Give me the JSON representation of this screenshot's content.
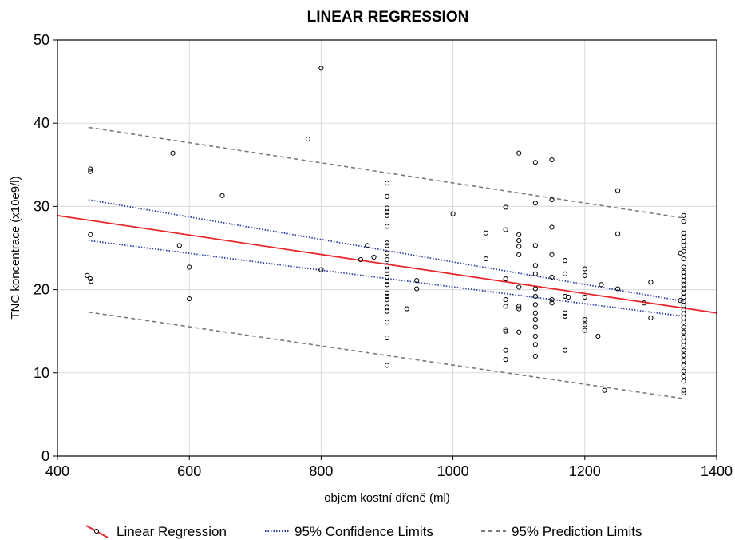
{
  "chart_data": {
    "type": "scatter",
    "title": "LINEAR REGRESSION",
    "xlabel": "objem kostní dřeně (ml)",
    "ylabel": "TNC koncentrace (x10e9/l)",
    "xlim": [
      400,
      1400
    ],
    "ylim": [
      0,
      50
    ],
    "xticks": [
      "400",
      "600",
      "800",
      "1000",
      "1200",
      "1400"
    ],
    "yticks": [
      "0",
      "10",
      "20",
      "30",
      "40",
      "50"
    ],
    "grid": true,
    "legend_position": "bottom",
    "legend": [
      "Linear Regression",
      "95% Confidence Limits",
      "95% Prediction Limits"
    ],
    "colors": {
      "regression": "#e8262b",
      "confidence": "#2a3fa0",
      "prediction": "#7a7a7a",
      "points": "#000000",
      "grid": "#d9d9d9"
    },
    "regression_line": {
      "x": [
        400,
        1400
      ],
      "y": [
        28.9,
        17.2
      ]
    },
    "confidence_upper": {
      "x": [
        447,
        1350
      ],
      "y": [
        30.8,
        18.6
      ]
    },
    "confidence_lower": {
      "x": [
        447,
        1350
      ],
      "y": [
        25.9,
        16.8
      ]
    },
    "prediction_upper": {
      "x": [
        447,
        1350
      ],
      "y": [
        39.5,
        28.6
      ]
    },
    "prediction_lower": {
      "x": [
        447,
        1350
      ],
      "y": [
        17.3,
        6.9
      ]
    },
    "points": [
      [
        445,
        21.7
      ],
      [
        450,
        21.3
      ],
      [
        451,
        21.0
      ],
      [
        450,
        26.6
      ],
      [
        450,
        34.5
      ],
      [
        450,
        34.2
      ],
      [
        575,
        36.4
      ],
      [
        585,
        25.3
      ],
      [
        600,
        22.7
      ],
      [
        600,
        18.9
      ],
      [
        650,
        31.3
      ],
      [
        780,
        38.1
      ],
      [
        800,
        46.6
      ],
      [
        800,
        22.4
      ],
      [
        860,
        23.6
      ],
      [
        870,
        25.3
      ],
      [
        880,
        23.9
      ],
      [
        900,
        32.8
      ],
      [
        900,
        31.2
      ],
      [
        900,
        29.8
      ],
      [
        900,
        29.3
      ],
      [
        900,
        28.9
      ],
      [
        900,
        27.6
      ],
      [
        900,
        25.6
      ],
      [
        900,
        25.3
      ],
      [
        900,
        24.4
      ],
      [
        900,
        23.6
      ],
      [
        900,
        22.9
      ],
      [
        900,
        22.3
      ],
      [
        900,
        21.9
      ],
      [
        900,
        21.5
      ],
      [
        900,
        21.0
      ],
      [
        900,
        20.6
      ],
      [
        900,
        19.6
      ],
      [
        900,
        19.2
      ],
      [
        900,
        18.8
      ],
      [
        900,
        17.9
      ],
      [
        900,
        17.4
      ],
      [
        900,
        16.1
      ],
      [
        900,
        14.2
      ],
      [
        900,
        10.9
      ],
      [
        930,
        17.7
      ],
      [
        945,
        21.1
      ],
      [
        945,
        20.1
      ],
      [
        1000,
        29.1
      ],
      [
        1050,
        26.8
      ],
      [
        1050,
        23.7
      ],
      [
        1080,
        29.9
      ],
      [
        1080,
        27.2
      ],
      [
        1080,
        21.3
      ],
      [
        1080,
        18.8
      ],
      [
        1080,
        18.0
      ],
      [
        1080,
        15.2
      ],
      [
        1080,
        15.0
      ],
      [
        1080,
        12.7
      ],
      [
        1080,
        11.6
      ],
      [
        1100,
        36.4
      ],
      [
        1100,
        26.6
      ],
      [
        1100,
        25.9
      ],
      [
        1100,
        25.2
      ],
      [
        1100,
        24.2
      ],
      [
        1100,
        20.3
      ],
      [
        1100,
        18.0
      ],
      [
        1100,
        17.7
      ],
      [
        1100,
        14.9
      ],
      [
        1125,
        35.3
      ],
      [
        1125,
        30.4
      ],
      [
        1125,
        25.3
      ],
      [
        1125,
        22.9
      ],
      [
        1125,
        21.9
      ],
      [
        1125,
        20.1
      ],
      [
        1125,
        19.2
      ],
      [
        1125,
        18.2
      ],
      [
        1125,
        17.2
      ],
      [
        1125,
        16.4
      ],
      [
        1125,
        15.5
      ],
      [
        1125,
        14.4
      ],
      [
        1125,
        13.4
      ],
      [
        1125,
        12.0
      ],
      [
        1150,
        35.6
      ],
      [
        1150,
        30.8
      ],
      [
        1150,
        27.5
      ],
      [
        1150,
        24.2
      ],
      [
        1150,
        21.5
      ],
      [
        1150,
        18.8
      ],
      [
        1150,
        18.4
      ],
      [
        1170,
        23.5
      ],
      [
        1170,
        21.9
      ],
      [
        1170,
        19.2
      ],
      [
        1170,
        17.2
      ],
      [
        1170,
        16.8
      ],
      [
        1170,
        12.7
      ],
      [
        1175,
        19.1
      ],
      [
        1200,
        22.5
      ],
      [
        1200,
        21.7
      ],
      [
        1200,
        19.1
      ],
      [
        1200,
        16.4
      ],
      [
        1200,
        15.8
      ],
      [
        1200,
        15.1
      ],
      [
        1220,
        14.4
      ],
      [
        1225,
        20.6
      ],
      [
        1230,
        7.9
      ],
      [
        1250,
        31.9
      ],
      [
        1250,
        26.7
      ],
      [
        1250,
        20.1
      ],
      [
        1290,
        18.4
      ],
      [
        1300,
        20.9
      ],
      [
        1300,
        16.6
      ],
      [
        1345,
        24.4
      ],
      [
        1345,
        18.7
      ],
      [
        1350,
        28.9
      ],
      [
        1350,
        28.2
      ],
      [
        1350,
        26.8
      ],
      [
        1350,
        26.3
      ],
      [
        1350,
        25.8
      ],
      [
        1350,
        25.3
      ],
      [
        1350,
        24.6
      ],
      [
        1350,
        23.7
      ],
      [
        1350,
        22.7
      ],
      [
        1350,
        22.1
      ],
      [
        1350,
        21.6
      ],
      [
        1350,
        21.1
      ],
      [
        1350,
        20.6
      ],
      [
        1350,
        20.1
      ],
      [
        1350,
        19.6
      ],
      [
        1350,
        19.1
      ],
      [
        1350,
        18.6
      ],
      [
        1350,
        18.1
      ],
      [
        1350,
        17.6
      ],
      [
        1350,
        17.1
      ],
      [
        1350,
        16.6
      ],
      [
        1350,
        16.1
      ],
      [
        1350,
        15.5
      ],
      [
        1350,
        14.9
      ],
      [
        1350,
        14.3
      ],
      [
        1350,
        13.8
      ],
      [
        1350,
        13.3
      ],
      [
        1350,
        12.7
      ],
      [
        1350,
        12.1
      ],
      [
        1350,
        11.5
      ],
      [
        1350,
        10.9
      ],
      [
        1350,
        10.2
      ],
      [
        1350,
        9.6
      ],
      [
        1350,
        9.0
      ],
      [
        1350,
        7.9
      ],
      [
        1350,
        7.6
      ]
    ]
  }
}
